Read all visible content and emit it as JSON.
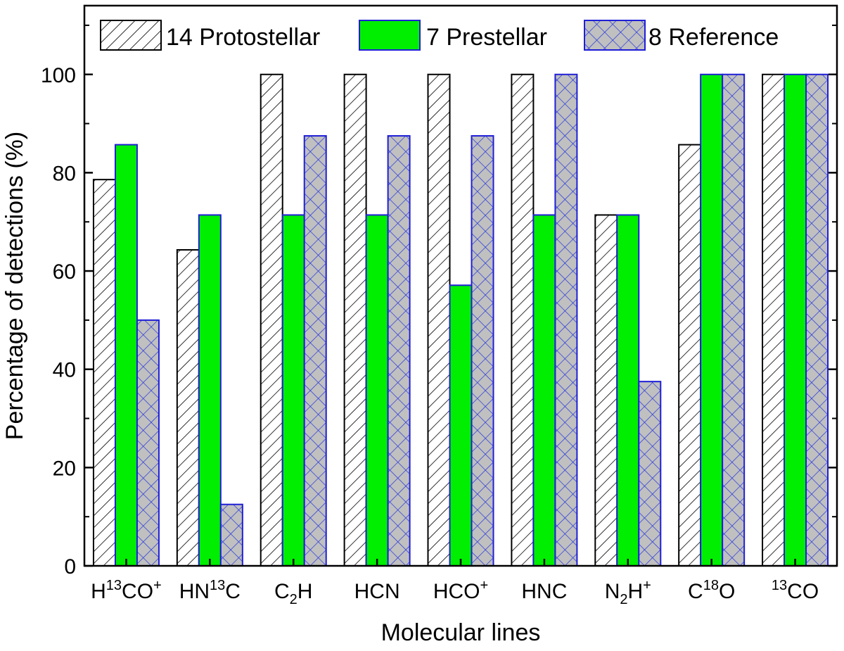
{
  "chart_data": {
    "type": "bar",
    "xlabel": "Molecular lines",
    "ylabel": "Percentage of detections (%)",
    "ylim": [
      0,
      114
    ],
    "yticks": [
      0,
      20,
      40,
      60,
      80,
      100
    ],
    "grid": false,
    "legend_position": "top",
    "categories": [
      {
        "base": "H",
        "sup1": "13",
        "mid": "CO",
        "sup2": "+",
        "label": "H13CO+"
      },
      {
        "base": "HN",
        "sup1": "13",
        "mid": "C",
        "label": "HN13C"
      },
      {
        "base": "C",
        "sub": "2",
        "mid": "H",
        "label": "C2H"
      },
      {
        "base": "HCN",
        "label": "HCN"
      },
      {
        "base": "HCO",
        "sup2": "+",
        "label": "HCO+"
      },
      {
        "base": "HNC",
        "label": "HNC"
      },
      {
        "base": "N",
        "sub": "2",
        "mid": "H",
        "sup2": "+",
        "label": "N2H+"
      },
      {
        "base": "C",
        "sup1": "18",
        "mid": "O",
        "label": "C18O"
      },
      {
        "pre": "13",
        "base": "CO",
        "label": "13CO"
      }
    ],
    "series": [
      {
        "name": "14 Protostellar",
        "pattern": "hatch",
        "fill": "#ffffff",
        "stroke": "#000000",
        "values": [
          78.6,
          64.3,
          100,
          100,
          100,
          100,
          71.4,
          85.7,
          100
        ]
      },
      {
        "name": "7  Prestellar",
        "pattern": "solid",
        "fill": "#00ee00",
        "stroke": "#1f1fd6",
        "values": [
          85.7,
          71.4,
          71.4,
          71.4,
          57.1,
          71.4,
          71.4,
          100,
          100
        ]
      },
      {
        "name": "8  Reference",
        "pattern": "crosshatch",
        "fill": "#c0c0c0",
        "stroke": "#1f1fd6",
        "values": [
          50,
          12.5,
          87.5,
          87.5,
          87.5,
          100,
          37.5,
          100,
          100
        ]
      }
    ]
  }
}
